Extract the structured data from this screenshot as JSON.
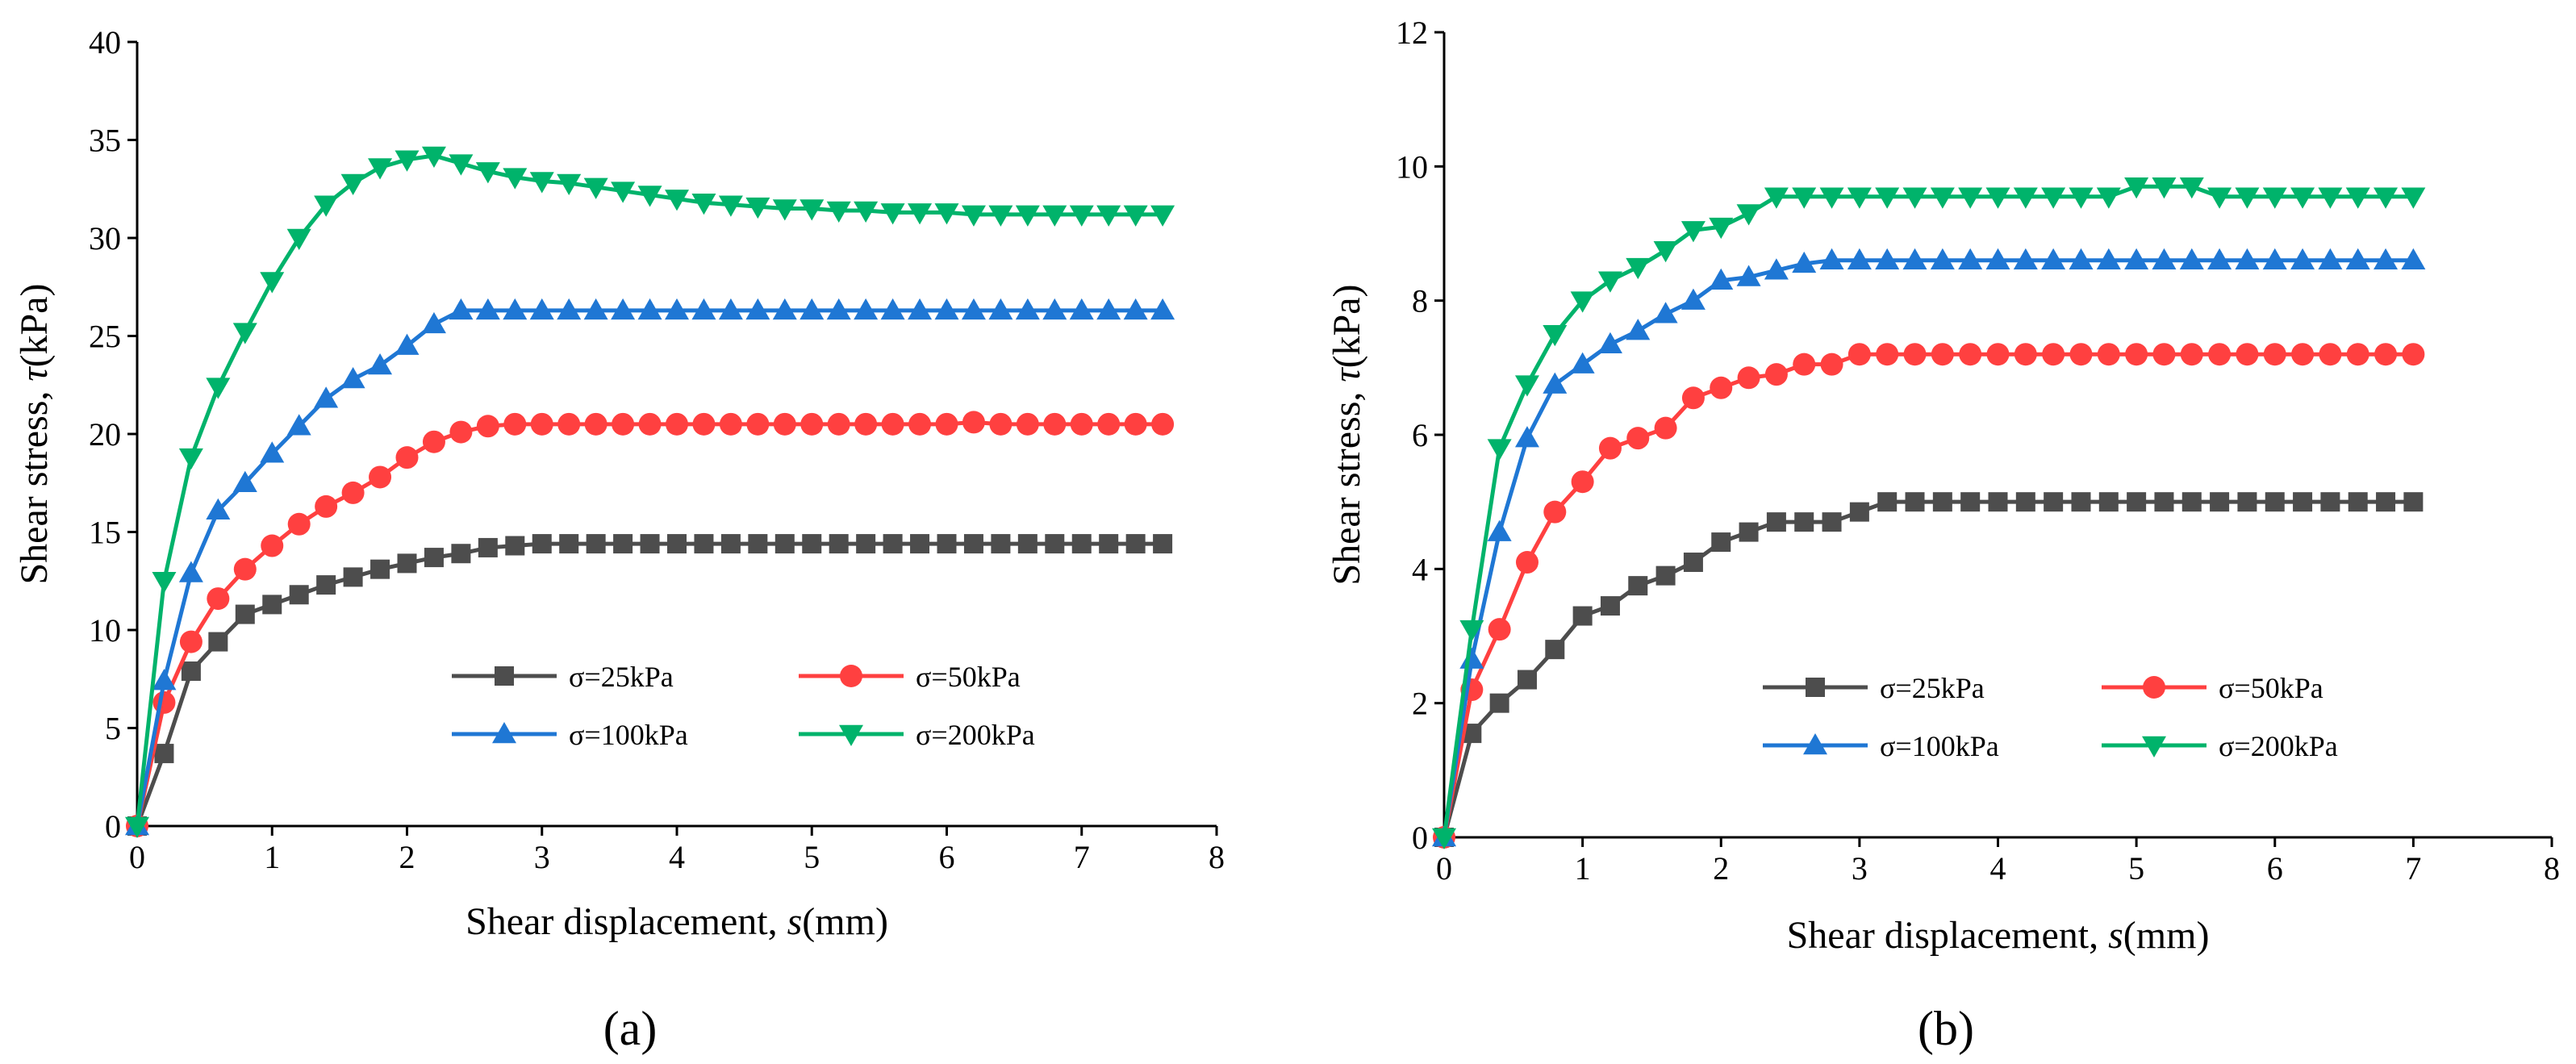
{
  "figure": {
    "caption_a": "(a)",
    "caption_b": "(b)"
  },
  "chart_data": [
    {
      "type": "line",
      "panel": "a",
      "title": "",
      "xlabel": "Shear displacement, s(mm)",
      "xlabel_prefix": "Shear displacement, ",
      "xlabel_var": "s",
      "xlabel_unit": "(mm)",
      "ylabel": "Shear stress, τ (kPa)",
      "ylabel_prefix": "Shear stress, ",
      "ylabel_var": "τ",
      "ylabel_unit": "(kPa)",
      "xlim": [
        0,
        8
      ],
      "ylim": [
        0,
        40
      ],
      "xticks": [
        0,
        1,
        2,
        3,
        4,
        5,
        6,
        7,
        8
      ],
      "yticks": [
        0,
        5,
        10,
        15,
        20,
        25,
        30,
        35,
        40
      ],
      "grid": false,
      "legend_position": "lower-right",
      "x": [
        0,
        0.2,
        0.4,
        0.6,
        0.8,
        1.0,
        1.2,
        1.4,
        1.6,
        1.8,
        2.0,
        2.2,
        2.4,
        2.6,
        2.8,
        3.0,
        3.2,
        3.4,
        3.6,
        3.8,
        4.0,
        4.2,
        4.4,
        4.6,
        4.8,
        5.0,
        5.2,
        5.4,
        5.6,
        5.8,
        6.0,
        6.2,
        6.4,
        6.6,
        6.8,
        7.0,
        7.2,
        7.4,
        7.6
      ],
      "series": [
        {
          "name": "σ=25kPa",
          "color": "#4d4d4d",
          "marker": "square",
          "values": [
            0,
            3.7,
            7.9,
            9.4,
            10.8,
            11.3,
            11.8,
            12.3,
            12.7,
            13.1,
            13.4,
            13.7,
            13.9,
            14.2,
            14.3,
            14.4,
            14.4,
            14.4,
            14.4,
            14.4,
            14.4,
            14.4,
            14.4,
            14.4,
            14.4,
            14.4,
            14.4,
            14.4,
            14.4,
            14.4,
            14.4,
            14.4,
            14.4,
            14.4,
            14.4,
            14.4,
            14.4,
            14.4,
            14.4
          ]
        },
        {
          "name": "σ=50kPa",
          "color": "#ff4040",
          "marker": "circle",
          "values": [
            0,
            6.3,
            9.4,
            11.6,
            13.1,
            14.3,
            15.4,
            16.3,
            17.0,
            17.8,
            18.8,
            19.6,
            20.1,
            20.4,
            20.5,
            20.5,
            20.5,
            20.5,
            20.5,
            20.5,
            20.5,
            20.5,
            20.5,
            20.5,
            20.5,
            20.5,
            20.5,
            20.5,
            20.5,
            20.5,
            20.5,
            20.6,
            20.5,
            20.5,
            20.5,
            20.5,
            20.5,
            20.5,
            20.5
          ]
        },
        {
          "name": "σ=100kPa",
          "color": "#1f77d4",
          "marker": "triangle-up",
          "values": [
            0,
            7.4,
            12.9,
            16.1,
            17.5,
            19.0,
            20.4,
            21.8,
            22.8,
            23.5,
            24.5,
            25.6,
            26.3,
            26.3,
            26.3,
            26.3,
            26.3,
            26.3,
            26.3,
            26.3,
            26.3,
            26.3,
            26.3,
            26.3,
            26.3,
            26.3,
            26.3,
            26.3,
            26.3,
            26.3,
            26.3,
            26.3,
            26.3,
            26.3,
            26.3,
            26.3,
            26.3,
            26.3,
            26.3
          ]
        },
        {
          "name": "σ=200kPa",
          "color": "#00b36b",
          "marker": "triangle-down",
          "values": [
            0,
            12.5,
            18.8,
            22.4,
            25.2,
            27.8,
            30.0,
            31.7,
            32.8,
            33.6,
            34.0,
            34.2,
            33.8,
            33.4,
            33.1,
            32.9,
            32.8,
            32.6,
            32.4,
            32.2,
            32.0,
            31.8,
            31.7,
            31.6,
            31.5,
            31.5,
            31.4,
            31.4,
            31.3,
            31.3,
            31.3,
            31.2,
            31.2,
            31.2,
            31.2,
            31.2,
            31.2,
            31.2,
            31.2
          ]
        }
      ]
    },
    {
      "type": "line",
      "panel": "b",
      "title": "",
      "xlabel": "Shear displacement, s(mm)",
      "xlabel_prefix": "Shear displacement, ",
      "xlabel_var": "s",
      "xlabel_unit": "(mm)",
      "ylabel": "Shear stress, τ (kPa)",
      "ylabel_prefix": "Shear stress, ",
      "ylabel_var": "τ",
      "ylabel_unit": "(kPa)",
      "xlim": [
        0,
        8
      ],
      "ylim": [
        0,
        12
      ],
      "xticks": [
        0,
        1,
        2,
        3,
        4,
        5,
        6,
        7,
        8
      ],
      "yticks": [
        0,
        2,
        4,
        6,
        8,
        10,
        12
      ],
      "grid": false,
      "legend_position": "lower-right",
      "x": [
        0,
        0.2,
        0.4,
        0.6,
        0.8,
        1.0,
        1.2,
        1.4,
        1.6,
        1.8,
        2.0,
        2.2,
        2.4,
        2.6,
        2.8,
        3.0,
        3.2,
        3.4,
        3.6,
        3.8,
        4.0,
        4.2,
        4.4,
        4.6,
        4.8,
        5.0,
        5.2,
        5.4,
        5.6,
        5.8,
        6.0,
        6.2,
        6.4,
        6.6,
        6.8,
        7.0
      ],
      "series": [
        {
          "name": "σ=25kPa",
          "color": "#4d4d4d",
          "marker": "square",
          "values": [
            0,
            1.55,
            2.0,
            2.35,
            2.8,
            3.3,
            3.45,
            3.75,
            3.9,
            4.1,
            4.4,
            4.55,
            4.7,
            4.7,
            4.7,
            4.85,
            5.0,
            5.0,
            5.0,
            5.0,
            5.0,
            5.0,
            5.0,
            5.0,
            5.0,
            5.0,
            5.0,
            5.0,
            5.0,
            5.0,
            5.0,
            5.0,
            5.0,
            5.0,
            5.0,
            5.0
          ]
        },
        {
          "name": "σ=50kPa",
          "color": "#ff4040",
          "marker": "circle",
          "values": [
            0,
            2.2,
            3.1,
            4.1,
            4.85,
            5.3,
            5.8,
            5.95,
            6.1,
            6.55,
            6.7,
            6.85,
            6.9,
            7.05,
            7.05,
            7.2,
            7.2,
            7.2,
            7.2,
            7.2,
            7.2,
            7.2,
            7.2,
            7.2,
            7.2,
            7.2,
            7.2,
            7.2,
            7.2,
            7.2,
            7.2,
            7.2,
            7.2,
            7.2,
            7.2,
            7.2
          ]
        },
        {
          "name": "σ=100kPa",
          "color": "#1f77d4",
          "marker": "triangle-up",
          "values": [
            0,
            2.65,
            4.55,
            5.95,
            6.75,
            7.05,
            7.35,
            7.55,
            7.8,
            8.0,
            8.3,
            8.35,
            8.45,
            8.55,
            8.6,
            8.6,
            8.6,
            8.6,
            8.6,
            8.6,
            8.6,
            8.6,
            8.6,
            8.6,
            8.6,
            8.6,
            8.6,
            8.6,
            8.6,
            8.6,
            8.6,
            8.6,
            8.6,
            8.6,
            8.6,
            8.6
          ]
        },
        {
          "name": "σ=200kPa",
          "color": "#00b36b",
          "marker": "triangle-down",
          "values": [
            0,
            3.1,
            5.8,
            6.75,
            7.5,
            8.0,
            8.3,
            8.5,
            8.75,
            9.05,
            9.1,
            9.3,
            9.55,
            9.55,
            9.55,
            9.55,
            9.55,
            9.55,
            9.55,
            9.55,
            9.55,
            9.55,
            9.55,
            9.55,
            9.55,
            9.7,
            9.7,
            9.7,
            9.55,
            9.55,
            9.55,
            9.55,
            9.55,
            9.55,
            9.55,
            9.55
          ]
        }
      ]
    }
  ]
}
